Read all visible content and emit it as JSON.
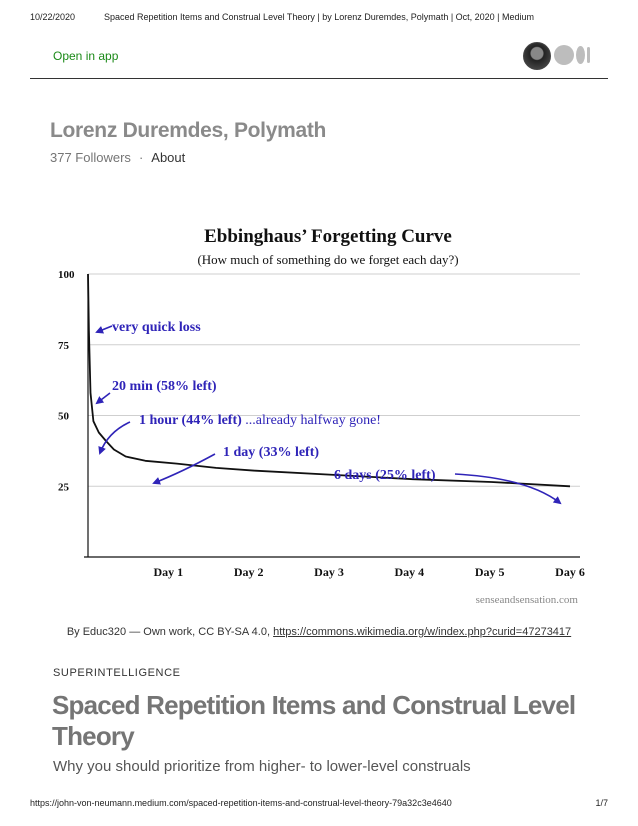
{
  "print_header": {
    "date": "10/22/2020",
    "title": "Spaced Repetition Items and Construal Level Theory | by Lorenz Duremdes, Polymath | Oct, 2020 | Medium"
  },
  "topbar": {
    "open_in_app": "Open in app",
    "avatar_icon": "user-avatar-icon",
    "logo_icon": "medium-logo-icon"
  },
  "publication": {
    "name": "Lorenz Duremdes, Polymath",
    "followers": "377 Followers",
    "separator": "·",
    "about": "About"
  },
  "chart_data": {
    "type": "line",
    "title": "Ebbinghaus’ Forgetting Curve",
    "subtitle": "(How much of something do we forget each day?)",
    "xlabel": "",
    "ylabel": "",
    "ylim": [
      0,
      100
    ],
    "xlim": [
      0,
      6
    ],
    "y_ticks": [
      25,
      50,
      75,
      100
    ],
    "x_ticks": [
      {
        "value": 1,
        "label": "Day 1"
      },
      {
        "value": 2,
        "label": "Day 2"
      },
      {
        "value": 3,
        "label": "Day 3"
      },
      {
        "value": 4,
        "label": "Day 4"
      },
      {
        "value": 5,
        "label": "Day 5"
      },
      {
        "value": 6,
        "label": "Day 6"
      }
    ],
    "grid": true,
    "series": [
      {
        "x": [
          0,
          0.005,
          0.014,
          0.03,
          0.06,
          0.1,
          0.2,
          0.35,
          0.6,
          1,
          1.5,
          2,
          3,
          4,
          5,
          6
        ],
        "y": [
          100,
          80,
          58,
          48,
          44,
          41,
          38,
          35.5,
          34,
          33,
          31.5,
          30.5,
          29,
          27.5,
          26.5,
          25
        ]
      }
    ],
    "annotations": [
      {
        "text": "very quick loss"
      },
      {
        "text": "20 min (58% left)"
      },
      {
        "text_bold": "1 hour (44% left)",
        "text_rest": " ...already halfway gone!"
      },
      {
        "text": "1 day (33% left)"
      },
      {
        "text": "6 days (25% left)"
      }
    ],
    "source_text": "senseandsensation.com",
    "colors": {
      "curve": "#111111",
      "annotation": "#2f24b8",
      "grid": "#cfcfcf"
    }
  },
  "caption": {
    "prefix": "By Educ320 — Own work, CC BY-SA 4.0, ",
    "link": "https://commons.wikimedia.org/w/index.php?curid=47273417"
  },
  "article": {
    "kicker": "SUPERINTELLIGENCE",
    "title": "Spaced Repetition Items and Construal Level Theory",
    "subtitle": "Why you should prioritize from higher- to lower-level construals"
  },
  "print_footer": {
    "url": "https://john-von-neumann.medium.com/spaced-repetition-items-and-construal-level-theory-79a32c3e4640",
    "page": "1/7"
  }
}
